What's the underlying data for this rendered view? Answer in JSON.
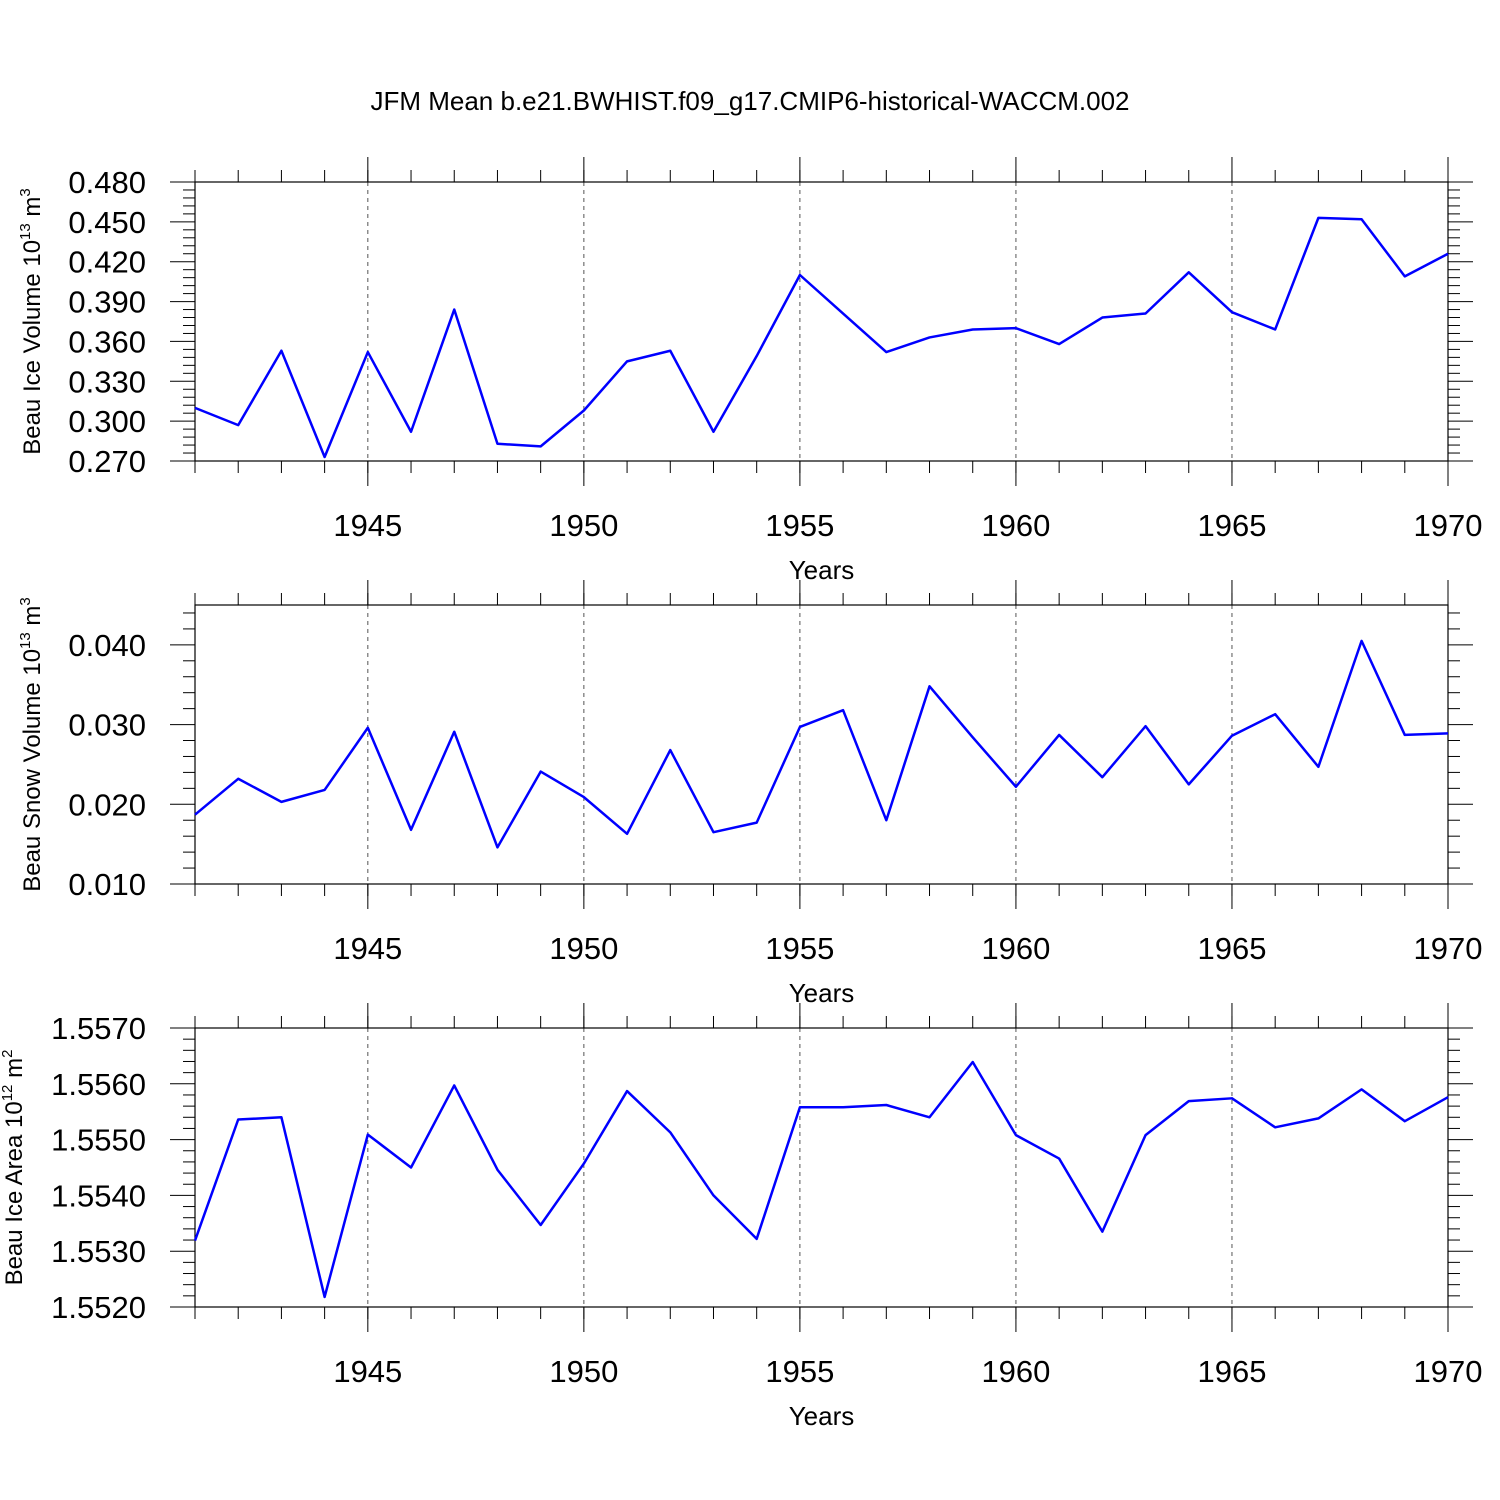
{
  "chart_data": [
    {
      "type": "line",
      "title": "JFM Mean b.e21.BWHIST.f09_g17.CMIP6-historical-WACCM.002",
      "ylabel": [
        "Beau Ice Volume 10",
        "13",
        " m",
        "3"
      ],
      "xlabel": "Years",
      "color": "#0000ff",
      "grid": true,
      "x": [
        1941,
        1942,
        1943,
        1944,
        1945,
        1946,
        1947,
        1948,
        1949,
        1950,
        1951,
        1952,
        1953,
        1954,
        1955,
        1956,
        1957,
        1958,
        1959,
        1960,
        1961,
        1962,
        1963,
        1964,
        1965,
        1966,
        1967,
        1968,
        1969,
        1970
      ],
      "values": [
        0.31,
        0.297,
        0.353,
        0.273,
        0.352,
        0.292,
        0.384,
        0.283,
        0.281,
        0.308,
        0.345,
        0.353,
        0.292,
        0.349,
        0.41,
        0.381,
        0.352,
        0.363,
        0.369,
        0.37,
        0.358,
        0.378,
        0.381,
        0.412,
        0.382,
        0.369,
        0.453,
        0.452,
        0.409,
        0.426
      ],
      "xlim": [
        1941,
        1970
      ],
      "xticks": [
        1945,
        1950,
        1955,
        1960,
        1965,
        1970
      ],
      "ylim": [
        0.27,
        0.48
      ],
      "yticks": [
        {
          "value": 0.27,
          "label": "0.270"
        },
        {
          "value": 0.3,
          "label": "0.300"
        },
        {
          "value": 0.33,
          "label": "0.330"
        },
        {
          "value": 0.36,
          "label": "0.360"
        },
        {
          "value": 0.39,
          "label": "0.390"
        },
        {
          "value": 0.42,
          "label": "0.420"
        },
        {
          "value": 0.45,
          "label": "0.450"
        },
        {
          "value": 0.48,
          "label": "0.480"
        }
      ]
    },
    {
      "type": "line",
      "ylabel": [
        "Beau Snow Volume 10",
        "13",
        " m",
        "3"
      ],
      "xlabel": "Years",
      "color": "#0000ff",
      "grid": true,
      "x": [
        1941,
        1942,
        1943,
        1944,
        1945,
        1946,
        1947,
        1948,
        1949,
        1950,
        1951,
        1952,
        1953,
        1954,
        1955,
        1956,
        1957,
        1958,
        1959,
        1960,
        1961,
        1962,
        1963,
        1964,
        1965,
        1966,
        1967,
        1968,
        1969,
        1970
      ],
      "values": [
        0.0187,
        0.0232,
        0.0203,
        0.0218,
        0.0296,
        0.0168,
        0.0291,
        0.0146,
        0.0241,
        0.0209,
        0.0163,
        0.0268,
        0.0165,
        0.0177,
        0.0297,
        0.0318,
        0.018,
        0.0348,
        0.0284,
        0.0222,
        0.0287,
        0.0234,
        0.0298,
        0.0225,
        0.0286,
        0.0313,
        0.0247,
        0.0405,
        0.0287,
        0.0289
      ],
      "xlim": [
        1941,
        1970
      ],
      "xticks": [
        1945,
        1950,
        1955,
        1960,
        1965,
        1970
      ],
      "ylim": [
        0.01,
        0.045
      ],
      "yticks": [
        {
          "value": 0.01,
          "label": "0.010"
        },
        {
          "value": 0.02,
          "label": "0.020"
        },
        {
          "value": 0.03,
          "label": "0.030"
        },
        {
          "value": 0.04,
          "label": "0.040"
        }
      ]
    },
    {
      "type": "line",
      "ylabel": [
        "Beau Ice Area 10",
        "12",
        " m",
        "2"
      ],
      "xlabel": "Years",
      "color": "#0000ff",
      "grid": true,
      "x": [
        1941,
        1942,
        1943,
        1944,
        1945,
        1946,
        1947,
        1948,
        1949,
        1950,
        1951,
        1952,
        1953,
        1954,
        1955,
        1956,
        1957,
        1958,
        1959,
        1960,
        1961,
        1962,
        1963,
        1964,
        1965,
        1966,
        1967,
        1968,
        1969,
        1970
      ],
      "values": [
        1.55319,
        1.55536,
        1.5554,
        1.55218,
        1.55509,
        1.5545,
        1.55597,
        1.55446,
        1.55347,
        1.55457,
        1.55587,
        1.55513,
        1.554,
        1.55322,
        1.55558,
        1.55558,
        1.55562,
        1.5554,
        1.55639,
        1.55508,
        1.55466,
        1.55335,
        1.55508,
        1.55569,
        1.55574,
        1.55522,
        1.55538,
        1.5559,
        1.55533,
        1.55576
      ],
      "xlim": [
        1941,
        1970
      ],
      "xticks": [
        1945,
        1950,
        1955,
        1960,
        1965,
        1970
      ],
      "ylim": [
        1.552,
        1.557
      ],
      "yticks": [
        {
          "value": 1.552,
          "label": "1.5520"
        },
        {
          "value": 1.553,
          "label": "1.5530"
        },
        {
          "value": 1.554,
          "label": "1.5540"
        },
        {
          "value": 1.555,
          "label": "1.5550"
        },
        {
          "value": 1.556,
          "label": "1.5560"
        },
        {
          "value": 1.557,
          "label": "1.5570"
        }
      ]
    }
  ]
}
